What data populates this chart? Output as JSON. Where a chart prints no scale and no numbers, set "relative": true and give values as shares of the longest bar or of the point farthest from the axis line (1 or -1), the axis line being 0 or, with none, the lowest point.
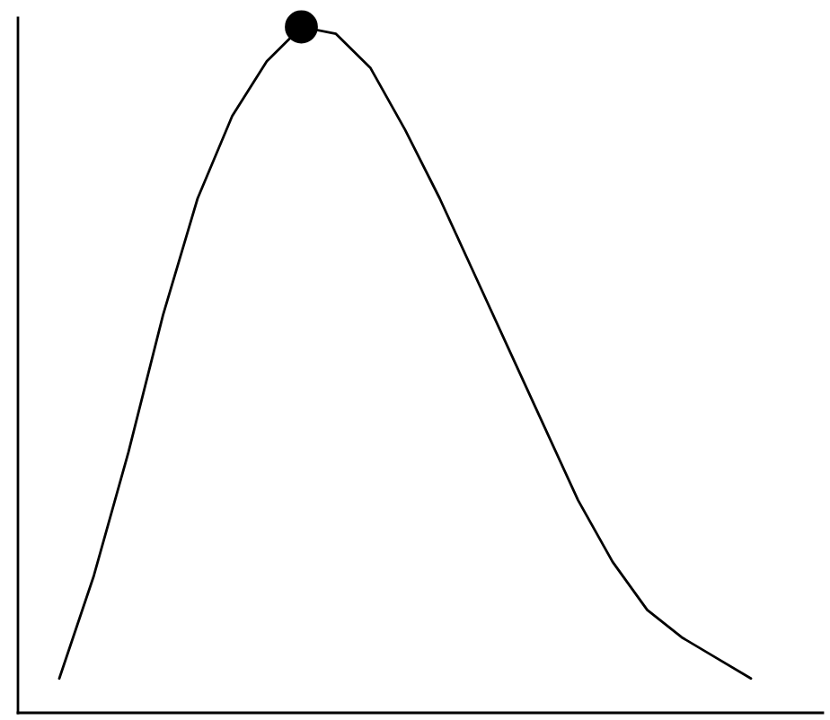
{
  "chart_data": {
    "type": "line",
    "relative": true,
    "grid": false,
    "legend": false,
    "marker": "none",
    "line_style": "solid",
    "categories": [
      null,
      null,
      null,
      null,
      null,
      null,
      null,
      null,
      null,
      null,
      null,
      null,
      null,
      null,
      null,
      null,
      null,
      null,
      null,
      null,
      null
    ],
    "series": [
      {
        "color": "#000000",
        "values": [
          0.05,
          0.2,
          0.38,
          0.58,
          0.75,
          0.87,
          0.95,
          1,
          0.99,
          0.94,
          0.85,
          0.75,
          0.64,
          0.53,
          0.42,
          0.31,
          0.22,
          0.15,
          0.11,
          0.08,
          0.05
        ]
      }
    ]
  }
}
